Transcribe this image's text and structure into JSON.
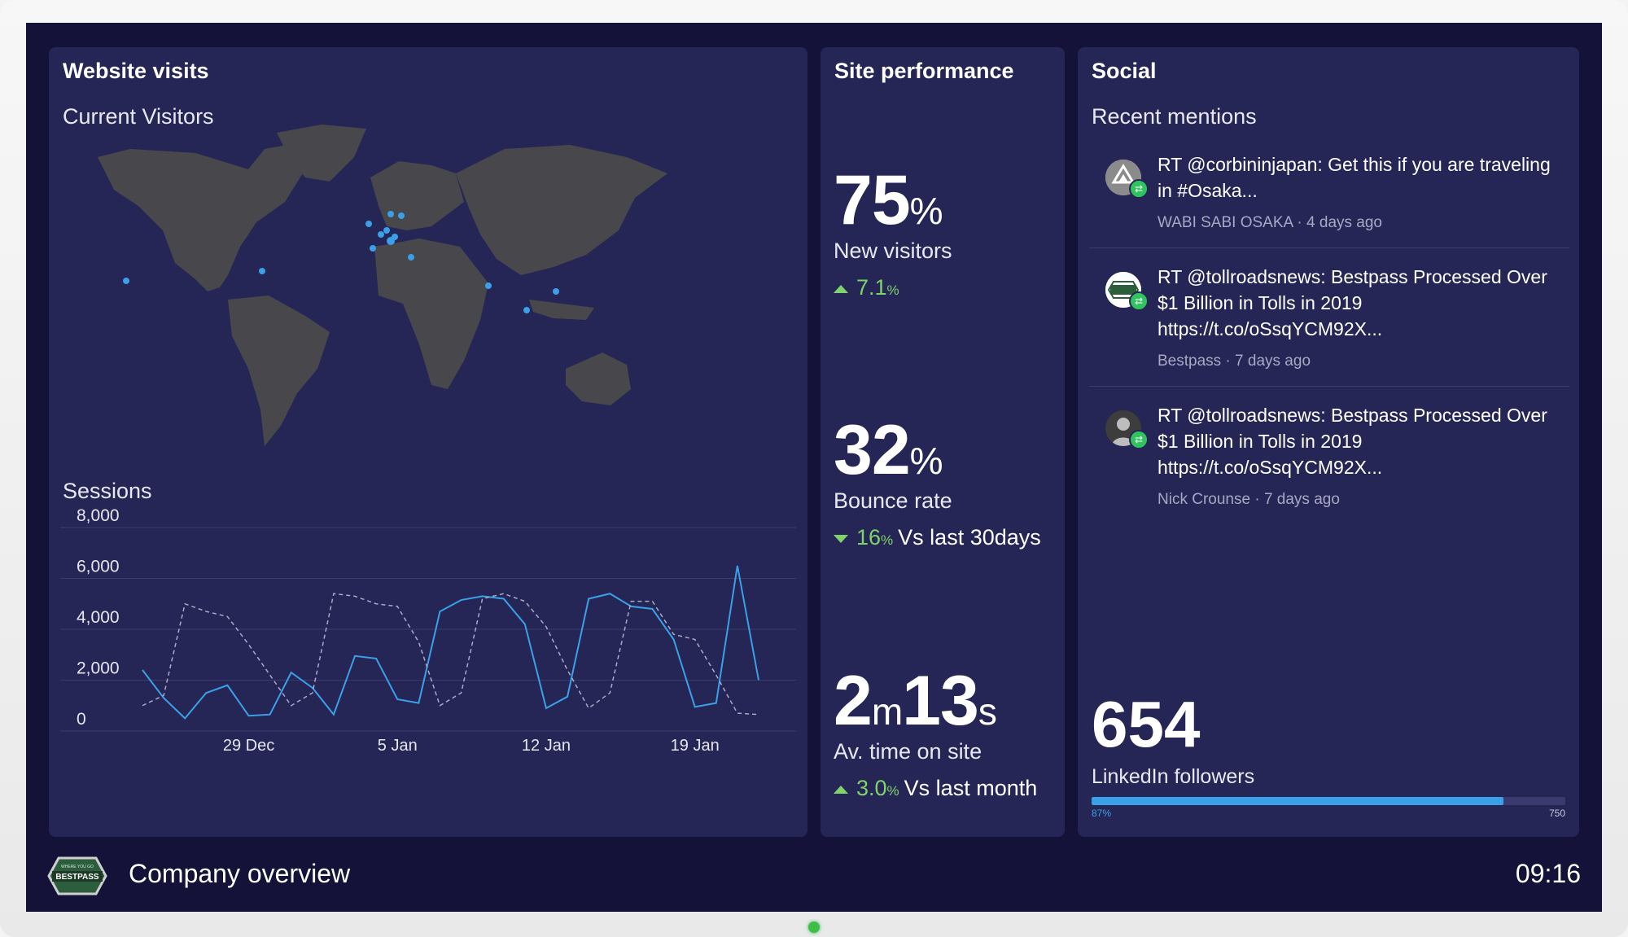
{
  "visits": {
    "title": "Website visits",
    "map_title": "Current Visitors",
    "sessions_title": "Sessions"
  },
  "chart_data": {
    "type": "line",
    "title": "Sessions",
    "ylim": [
      0,
      8000
    ],
    "y_ticks": [
      "8,000",
      "6,000",
      "4,000",
      "2,000",
      "0"
    ],
    "x_tick_labels": [
      "29 Dec",
      "5 Jan",
      "12 Jan",
      "19 Jan"
    ],
    "x_tick_index": [
      5,
      12,
      19,
      26
    ],
    "series": [
      {
        "name": "current",
        "style": "solid",
        "values": [
          2400,
          1300,
          500,
          1500,
          1800,
          600,
          650,
          2300,
          1700,
          650,
          2950,
          2850,
          1250,
          1100,
          4700,
          5150,
          5300,
          5200,
          4200,
          900,
          1350,
          5200,
          5400,
          4900,
          4800,
          3600,
          950,
          1100,
          6500,
          2000
        ]
      },
      {
        "name": "previous",
        "style": "dashed",
        "values": [
          1000,
          1400,
          5000,
          4700,
          4500,
          3400,
          2200,
          1000,
          1500,
          5400,
          5300,
          5000,
          4900,
          3500,
          1000,
          1500,
          5200,
          5400,
          5100,
          4100,
          2400,
          900,
          1500,
          5100,
          5100,
          3800,
          3600,
          2200,
          700,
          650
        ]
      }
    ]
  },
  "performance": {
    "title": "Site performance",
    "new_visitors": {
      "value": "75",
      "unit": "%",
      "label": "New visitors",
      "change": "7.1",
      "change_unit": "%",
      "suffix": ""
    },
    "bounce_rate": {
      "value": "32",
      "unit": "%",
      "label": "Bounce rate",
      "change": "16",
      "change_unit": "%",
      "suffix": "Vs last 30days"
    },
    "time_on_site": {
      "minutes": "2",
      "min_unit": "m",
      "seconds": "13",
      "sec_unit": "s",
      "label": "Av. time on site",
      "change": "3.0",
      "change_unit": "%",
      "suffix": "Vs last month"
    }
  },
  "social": {
    "title": "Social",
    "mentions_title": "Recent mentions",
    "mentions": [
      {
        "text": "RT @corbininjapan: Get this if you are traveling in #Osaka...",
        "author": "WABI SABI OSAKA",
        "time": "4 days ago"
      },
      {
        "text": "RT @tollroadsnews: Bestpass Processed Over $1 Billion in Tolls in 2019 https://t.co/oSsqYCM92X...",
        "author": "Bestpass",
        "time": "7 days ago"
      },
      {
        "text": "RT @tollroadsnews: Bestpass Processed Over $1 Billion in Tolls in 2019 https://t.co/oSsqYCM92X...",
        "author": "Nick Crounse",
        "time": "7 days ago"
      }
    ],
    "followers": {
      "value": "654",
      "label": "LinkedIn followers",
      "progress": 0.87,
      "progress_label": "87%",
      "goal_label": "750"
    }
  },
  "footer": {
    "title": "Company overview",
    "clock": "09:16",
    "logo_text": "BESTPASS",
    "logo_tagline": "WHERE YOU GO"
  },
  "colors": {
    "accent": "#3aa0e8",
    "positive": "#7fd36b",
    "card": "#262656",
    "background": "#141238"
  }
}
